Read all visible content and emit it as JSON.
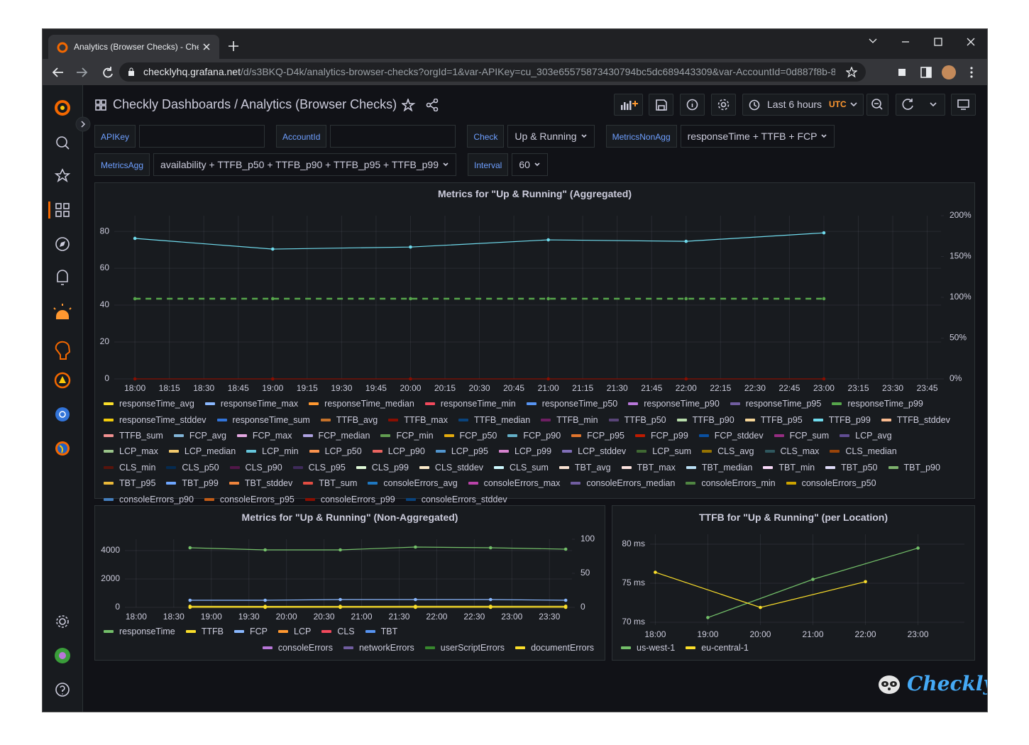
{
  "browser": {
    "tab_title": "Analytics (Browser Checks) - Che",
    "url_host": "checklyhq.grafana.net",
    "url_path": "/d/s3BKQ-D4k/analytics-browser-checks?orgId=1&var-APIKey=cu_303e65575873430794bc5dc689443309&var-AccountId=0d887f8b-8…"
  },
  "dashboard": {
    "folder": "Checkly Dashboards",
    "title": "/ Analytics (Browser Checks)",
    "time_range": "Last 6 hours",
    "timezone": "UTC",
    "variables": [
      {
        "label": "APIKey"
      },
      {
        "label": "AccountId"
      },
      {
        "label": "Check",
        "value": "Up & Running"
      },
      {
        "label": "MetricsNonAgg",
        "value": "responseTime + TTFB + FCP"
      },
      {
        "label": "MetricsAgg",
        "value": "availability + TTFB_p50 + TTFB_p90 + TTFB_p95 + TTFB_p99"
      },
      {
        "label": "Interval",
        "value": "60"
      }
    ],
    "brand": "Checkly"
  },
  "chart_data": [
    {
      "type": "line",
      "title": "Metrics for \"Up & Running\" (Aggregated)",
      "x": [
        "18:00",
        "19:00",
        "20:00",
        "21:00",
        "22:00",
        "23:00"
      ],
      "xlim": [
        "17:51",
        "23:51"
      ],
      "xticks": [
        "18:00",
        "18:15",
        "18:30",
        "18:45",
        "19:00",
        "19:15",
        "19:30",
        "19:45",
        "20:00",
        "20:15",
        "20:30",
        "20:45",
        "21:00",
        "21:15",
        "21:30",
        "21:45",
        "22:00",
        "22:15",
        "22:30",
        "22:45",
        "23:00",
        "23:15",
        "23:30",
        "23:45"
      ],
      "ylim": [
        0,
        88.5
      ],
      "yticks": [
        0,
        20,
        40,
        60,
        80
      ],
      "y2lim": [
        0,
        200
      ],
      "y2ticks": [
        {
          "value": 0,
          "label": "0%"
        },
        {
          "value": 50,
          "label": "50%"
        },
        {
          "value": 100,
          "label": "100%"
        },
        {
          "value": 150,
          "label": "150%"
        },
        {
          "value": 200,
          "label": "200%"
        }
      ],
      "grid": true,
      "series": [
        {
          "name": "responseTime_avg",
          "color": "#fade2a"
        },
        {
          "name": "responseTime_max",
          "color": "#8ab8ff"
        },
        {
          "name": "responseTime_median",
          "color": "#ff9830"
        },
        {
          "name": "responseTime_min",
          "color": "#f2495c"
        },
        {
          "name": "responseTime_p50",
          "color": "#5794f2"
        },
        {
          "name": "responseTime_p90",
          "color": "#b877d9"
        },
        {
          "name": "responseTime_p95",
          "color": "#705da0"
        },
        {
          "name": "responseTime_p99",
          "color": "#56a64b",
          "dashed": true,
          "values": [
            43.5,
            43.5,
            43.5,
            43.5,
            43.5,
            43.5
          ]
        },
        {
          "name": "responseTime_stddev",
          "color": "#f2cc0c"
        },
        {
          "name": "responseTime_sum",
          "color": "#3274d9"
        },
        {
          "name": "TTFB_avg",
          "color": "#c4712a"
        },
        {
          "name": "TTFB_max",
          "color": "#890f02",
          "values": [
            0,
            0,
            0,
            0,
            0,
            0
          ]
        },
        {
          "name": "TTFB_median",
          "color": "#0a437c"
        },
        {
          "name": "TTFB_min",
          "color": "#6d1f62"
        },
        {
          "name": "TTFB_p50",
          "color": "#584477"
        },
        {
          "name": "TTFB_p90",
          "color": "#b7dbab"
        },
        {
          "name": "TTFB_p95",
          "color": "#f4d598"
        },
        {
          "name": "TTFB_p99",
          "color": "#70dbed",
          "values": [
            76.2,
            70.4,
            71.5,
            75.4,
            74.6,
            79.2
          ]
        },
        {
          "name": "TTFB_stddev",
          "color": "#f9ba8f"
        },
        {
          "name": "TTFB_sum",
          "color": "#f29191"
        },
        {
          "name": "FCP_avg",
          "color": "#82b5d8"
        },
        {
          "name": "FCP_max",
          "color": "#e5a8e2"
        },
        {
          "name": "FCP_median",
          "color": "#aea2e0"
        },
        {
          "name": "FCP_min",
          "color": "#629e51"
        },
        {
          "name": "FCP_p50",
          "color": "#e5ac0e"
        },
        {
          "name": "FCP_p90",
          "color": "#64b0c8"
        },
        {
          "name": "FCP_p95",
          "color": "#e0752d"
        },
        {
          "name": "FCP_p99",
          "color": "#bf1b00"
        },
        {
          "name": "FCP_stddev",
          "color": "#0a50a1"
        },
        {
          "name": "FCP_sum",
          "color": "#962d82"
        },
        {
          "name": "LCP_avg",
          "color": "#614d93"
        },
        {
          "name": "LCP_max",
          "color": "#9ac48a"
        },
        {
          "name": "LCP_median",
          "color": "#f2c96d"
        },
        {
          "name": "LCP_min",
          "color": "#65c5db"
        },
        {
          "name": "LCP_p50",
          "color": "#f9934e"
        },
        {
          "name": "LCP_p90",
          "color": "#ea6460"
        },
        {
          "name": "LCP_p95",
          "color": "#5195ce"
        },
        {
          "name": "LCP_p99",
          "color": "#d683ce"
        },
        {
          "name": "LCP_stddev",
          "color": "#806eb7"
        },
        {
          "name": "LCP_sum",
          "color": "#3f6833"
        },
        {
          "name": "CLS_avg",
          "color": "#967302"
        },
        {
          "name": "CLS_max",
          "color": "#2f575e"
        },
        {
          "name": "CLS_median",
          "color": "#99440a"
        },
        {
          "name": "CLS_min",
          "color": "#58140c"
        },
        {
          "name": "CLS_p50",
          "color": "#052b51"
        },
        {
          "name": "CLS_p90",
          "color": "#511749"
        },
        {
          "name": "CLS_p95",
          "color": "#3f2b5b"
        },
        {
          "name": "CLS_p99",
          "color": "#e0f9d7"
        },
        {
          "name": "CLS_stddev",
          "color": "#fceaca"
        },
        {
          "name": "CLS_sum",
          "color": "#cffaff"
        },
        {
          "name": "TBT_avg",
          "color": "#f9e2d2"
        },
        {
          "name": "TBT_max",
          "color": "#fce2de"
        },
        {
          "name": "TBT_median",
          "color": "#badff4"
        },
        {
          "name": "TBT_min",
          "color": "#f9d9f9"
        },
        {
          "name": "TBT_p50",
          "color": "#dedaf7"
        },
        {
          "name": "TBT_p90",
          "color": "#7eb26d"
        },
        {
          "name": "TBT_p95",
          "color": "#eab839"
        },
        {
          "name": "TBT_p99",
          "color": "#6ea6ff"
        },
        {
          "name": "TBT_stddev",
          "color": "#ef843c"
        },
        {
          "name": "TBT_sum",
          "color": "#e24d42"
        },
        {
          "name": "consoleErrors_avg",
          "color": "#1f78c1"
        },
        {
          "name": "consoleErrors_max",
          "color": "#ba43a9"
        },
        {
          "name": "consoleErrors_median",
          "color": "#705da0"
        },
        {
          "name": "consoleErrors_min",
          "color": "#508642"
        },
        {
          "name": "consoleErrors_p50",
          "color": "#cca300"
        },
        {
          "name": "consoleErrors_p90",
          "color": "#447ebc"
        },
        {
          "name": "consoleErrors_p95",
          "color": "#c15c17"
        },
        {
          "name": "consoleErrors_p99",
          "color": "#890f02"
        },
        {
          "name": "consoleErrors_stddev",
          "color": "#0a437c"
        }
      ]
    },
    {
      "type": "line",
      "title": "Metrics for \"Up & Running\" (Non-Aggregated)",
      "x": [
        "18:43",
        "19:43",
        "20:43",
        "21:43",
        "22:43",
        "23:43"
      ],
      "xlim": [
        "17:51",
        "23:48"
      ],
      "xticks": [
        "18:00",
        "18:30",
        "19:00",
        "19:30",
        "20:00",
        "20:30",
        "21:00",
        "21:30",
        "22:00",
        "22:30",
        "23:00",
        "23:30"
      ],
      "ylim": [
        0,
        4800
      ],
      "yticks": [
        0,
        2000,
        4000
      ],
      "y2lim": [
        0,
        100
      ],
      "y2ticks": [
        0,
        50,
        100
      ],
      "grid": true,
      "series": [
        {
          "name": "responseTime",
          "color": "#73bf69",
          "values": [
            4200,
            4050,
            4050,
            4250,
            4200,
            4100
          ]
        },
        {
          "name": "TTFB",
          "color": "#fade2a",
          "values": [
            76,
            70,
            71,
            75,
            75,
            79
          ]
        },
        {
          "name": "FCP",
          "color": "#8ab8ff",
          "values": [
            500,
            500,
            550,
            550,
            550,
            500
          ]
        },
        {
          "name": "LCP",
          "color": "#ff9830"
        },
        {
          "name": "CLS",
          "color": "#f2495c"
        },
        {
          "name": "TBT",
          "color": "#5794f2"
        },
        {
          "name": "consoleErrors",
          "color": "#b877d9",
          "axis": "y2"
        },
        {
          "name": "networkErrors",
          "color": "#705da0",
          "axis": "y2"
        },
        {
          "name": "userScriptErrors",
          "color": "#37872d",
          "axis": "y2"
        },
        {
          "name": "documentErrors",
          "color": "#fade2a",
          "axis": "y2",
          "values": [
            0,
            0,
            0,
            0,
            0,
            0
          ]
        }
      ]
    },
    {
      "type": "line",
      "title": "TTFB for \"Up & Running\" (per Location)",
      "xlim": [
        "17:54",
        "23:53"
      ],
      "xticks": [
        "18:00",
        "19:00",
        "20:00",
        "21:00",
        "22:00",
        "23:00"
      ],
      "ylim": [
        69.64,
        81.27
      ],
      "yticks": [
        {
          "value": 70,
          "label": "70 ms"
        },
        {
          "value": 75,
          "label": "75 ms"
        },
        {
          "value": 80,
          "label": "80 ms"
        }
      ],
      "grid": true,
      "series": [
        {
          "name": "us-west-1",
          "color": "#73bf69",
          "x": [
            "19:00",
            "21:00",
            "23:00"
          ],
          "values": [
            70.6,
            75.5,
            79.5
          ]
        },
        {
          "name": "eu-central-1",
          "color": "#fade2a",
          "x": [
            "18:00",
            "20:00",
            "22:00"
          ],
          "values": [
            76.4,
            71.9,
            75.2
          ]
        }
      ]
    }
  ]
}
